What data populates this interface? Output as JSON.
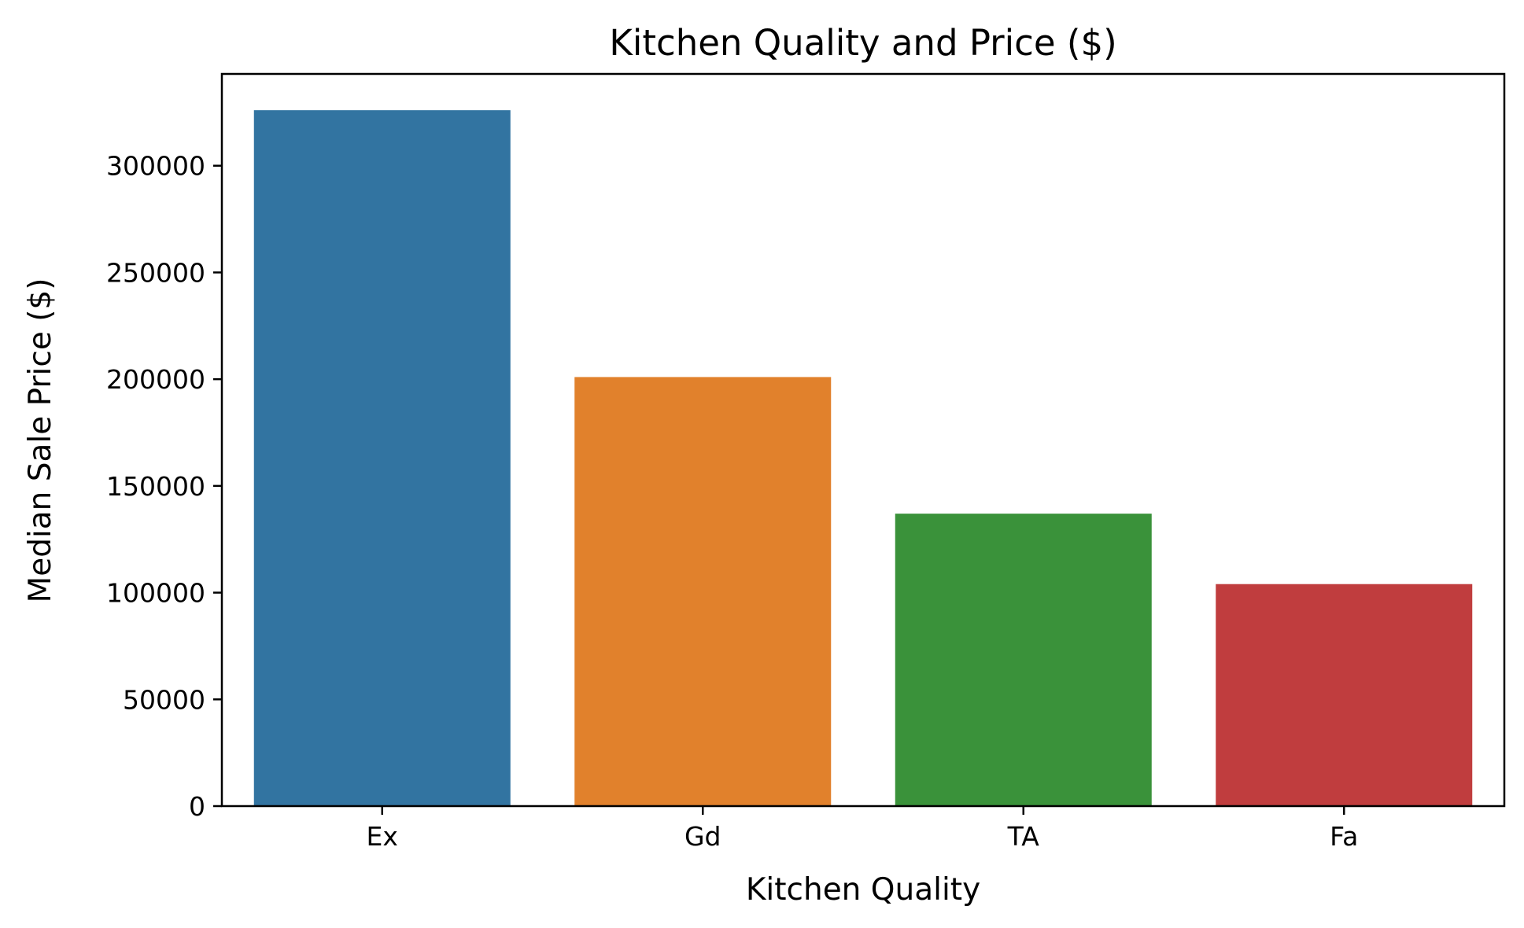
{
  "chart_data": {
    "type": "bar",
    "title": "Kitchen Quality and Price ($)",
    "xlabel": "Kitchen Quality",
    "ylabel": "Median Sale Price ($)",
    "categories": [
      "Ex",
      "Gd",
      "TA",
      "Fa"
    ],
    "values": [
      326000,
      201000,
      137000,
      104000
    ],
    "colors": [
      "#3274a1",
      "#e1812c",
      "#3a923a",
      "#c03d3e"
    ],
    "ylim": [
      0,
      343000
    ],
    "yticks": [
      0,
      50000,
      100000,
      150000,
      200000,
      250000,
      300000
    ],
    "grid": false,
    "legend": "none"
  }
}
